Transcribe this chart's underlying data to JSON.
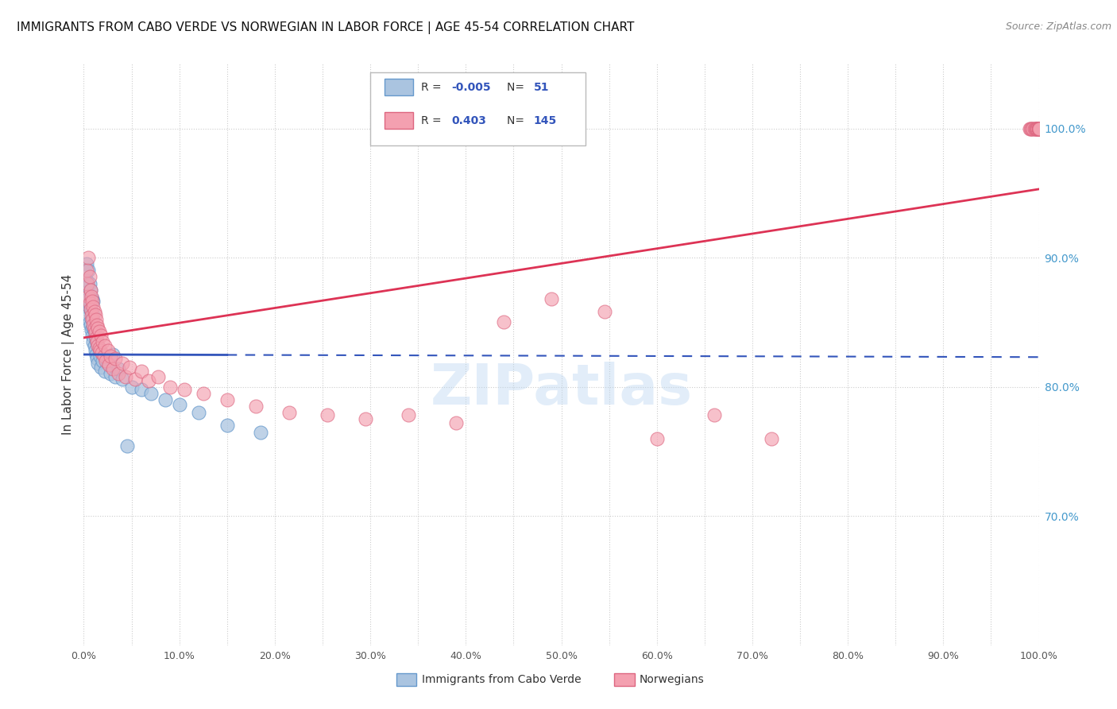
{
  "title": "IMMIGRANTS FROM CABO VERDE VS NORWEGIAN IN LABOR FORCE | AGE 45-54 CORRELATION CHART",
  "source": "Source: ZipAtlas.com",
  "ylabel": "In Labor Force | Age 45-54",
  "x_tick_labels": [
    "0.0%",
    "",
    "10.0%",
    "",
    "20.0%",
    "",
    "30.0%",
    "",
    "40.0%",
    "",
    "50.0%",
    "",
    "60.0%",
    "",
    "70.0%",
    "",
    "80.0%",
    "",
    "90.0%",
    "",
    "100.0%"
  ],
  "x_tick_values": [
    0.0,
    0.05,
    0.1,
    0.15,
    0.2,
    0.25,
    0.3,
    0.35,
    0.4,
    0.45,
    0.5,
    0.55,
    0.6,
    0.65,
    0.7,
    0.75,
    0.8,
    0.85,
    0.9,
    0.95,
    1.0
  ],
  "y_tick_labels_right": [
    "100.0%",
    "90.0%",
    "80.0%",
    "70.0%"
  ],
  "y_tick_values_right": [
    1.0,
    0.9,
    0.8,
    0.7
  ],
  "xlim": [
    0.0,
    1.0
  ],
  "ylim": [
    0.6,
    1.05
  ],
  "legend_R_blue": "-0.005",
  "legend_N_blue": "51",
  "legend_R_pink": "0.403",
  "legend_N_pink": "145",
  "legend_label_blue": "Immigrants from Cabo Verde",
  "legend_label_pink": "Norwegians",
  "blue_scatter_color": "#aac4e0",
  "pink_scatter_color": "#f4a0b0",
  "blue_edge_color": "#6699cc",
  "pink_edge_color": "#dd6680",
  "blue_line_color": "#3355bb",
  "pink_line_color": "#dd3355",
  "background_color": "#ffffff",
  "grid_color": "#cccccc",
  "title_color": "#111111",
  "source_color": "#888888",
  "watermark": "ZIPatlas",
  "blue_line_x0": 0.0,
  "blue_line_x_solid_end": 0.15,
  "blue_line_y0": 0.825,
  "blue_line_slope": -0.002,
  "pink_line_x0": 0.0,
  "pink_line_y0": 0.838,
  "pink_line_slope": 0.115,
  "blue_x": [
    0.003,
    0.003,
    0.003,
    0.004,
    0.004,
    0.005,
    0.005,
    0.005,
    0.006,
    0.006,
    0.006,
    0.007,
    0.007,
    0.007,
    0.008,
    0.008,
    0.009,
    0.009,
    0.009,
    0.01,
    0.01,
    0.01,
    0.01,
    0.011,
    0.011,
    0.012,
    0.012,
    0.013,
    0.013,
    0.014,
    0.015,
    0.016,
    0.017,
    0.018,
    0.02,
    0.022,
    0.025,
    0.028,
    0.03,
    0.033,
    0.036,
    0.04,
    0.045,
    0.05,
    0.06,
    0.07,
    0.085,
    0.1,
    0.12,
    0.15,
    0.185
  ],
  "blue_y": [
    0.87,
    0.882,
    0.895,
    0.862,
    0.878,
    0.856,
    0.868,
    0.89,
    0.85,
    0.864,
    0.88,
    0.848,
    0.86,
    0.875,
    0.844,
    0.858,
    0.84,
    0.852,
    0.868,
    0.835,
    0.845,
    0.856,
    0.866,
    0.832,
    0.844,
    0.828,
    0.84,
    0.825,
    0.836,
    0.822,
    0.818,
    0.83,
    0.824,
    0.815,
    0.82,
    0.812,
    0.818,
    0.81,
    0.825,
    0.808,
    0.814,
    0.806,
    0.754,
    0.8,
    0.798,
    0.795,
    0.79,
    0.786,
    0.78,
    0.77,
    0.765
  ],
  "pink_x": [
    0.003,
    0.004,
    0.005,
    0.005,
    0.006,
    0.006,
    0.007,
    0.007,
    0.008,
    0.008,
    0.009,
    0.009,
    0.01,
    0.01,
    0.011,
    0.011,
    0.012,
    0.012,
    0.013,
    0.013,
    0.014,
    0.014,
    0.015,
    0.015,
    0.016,
    0.016,
    0.017,
    0.018,
    0.019,
    0.02,
    0.021,
    0.022,
    0.023,
    0.025,
    0.026,
    0.028,
    0.03,
    0.033,
    0.036,
    0.04,
    0.044,
    0.048,
    0.054,
    0.06,
    0.068,
    0.078,
    0.09,
    0.105,
    0.125,
    0.15,
    0.18,
    0.215,
    0.255,
    0.295,
    0.34,
    0.39,
    0.44,
    0.49,
    0.545,
    0.6,
    0.66,
    0.72,
    0.99,
    0.991,
    0.992,
    0.993,
    0.994,
    0.995,
    0.996,
    0.997,
    0.997,
    0.998,
    0.998,
    0.999,
    0.999,
    1.0,
    1.0,
    1.0,
    1.0,
    1.0,
    1.0,
    1.0,
    1.0,
    1.0,
    1.0,
    1.0,
    1.0,
    1.0,
    1.0,
    1.0,
    1.0,
    1.0,
    1.0,
    1.0,
    1.0,
    1.0,
    1.0,
    1.0,
    1.0,
    1.0,
    1.0,
    1.0,
    1.0,
    1.0,
    1.0,
    1.0,
    1.0,
    1.0,
    1.0,
    1.0,
    1.0,
    1.0,
    1.0,
    1.0,
    1.0,
    1.0,
    1.0,
    1.0,
    1.0,
    1.0,
    1.0,
    1.0,
    1.0,
    1.0,
    1.0,
    1.0,
    1.0,
    1.0,
    1.0,
    1.0,
    1.0,
    1.0,
    1.0,
    1.0,
    1.0,
    1.0,
    1.0,
    1.0,
    1.0,
    1.0,
    1.0,
    1.0
  ],
  "pink_y": [
    0.89,
    0.88,
    0.87,
    0.9,
    0.865,
    0.885,
    0.86,
    0.875,
    0.855,
    0.87,
    0.852,
    0.866,
    0.848,
    0.862,
    0.845,
    0.858,
    0.842,
    0.856,
    0.838,
    0.852,
    0.835,
    0.848,
    0.832,
    0.845,
    0.83,
    0.843,
    0.828,
    0.84,
    0.826,
    0.835,
    0.824,
    0.832,
    0.82,
    0.828,
    0.817,
    0.824,
    0.814,
    0.822,
    0.81,
    0.818,
    0.808,
    0.815,
    0.806,
    0.812,
    0.805,
    0.808,
    0.8,
    0.798,
    0.795,
    0.79,
    0.785,
    0.78,
    0.778,
    0.775,
    0.778,
    0.772,
    0.85,
    0.868,
    0.858,
    0.76,
    0.778,
    0.76,
    1.0,
    1.0,
    1.0,
    1.0,
    1.0,
    1.0,
    1.0,
    1.0,
    1.0,
    1.0,
    1.0,
    1.0,
    1.0,
    1.0,
    1.0,
    1.0,
    1.0,
    1.0,
    1.0,
    1.0,
    1.0,
    1.0,
    1.0,
    1.0,
    1.0,
    1.0,
    1.0,
    1.0,
    1.0,
    1.0,
    1.0,
    1.0,
    1.0,
    1.0,
    1.0,
    1.0,
    1.0,
    1.0,
    1.0,
    1.0,
    1.0,
    1.0,
    1.0,
    1.0,
    1.0,
    1.0,
    1.0,
    1.0,
    1.0,
    1.0,
    1.0,
    1.0,
    1.0,
    1.0,
    1.0,
    1.0,
    1.0,
    1.0,
    1.0,
    1.0,
    1.0,
    1.0,
    1.0,
    1.0,
    1.0,
    1.0,
    1.0,
    1.0,
    1.0,
    1.0,
    1.0,
    1.0,
    1.0,
    1.0,
    1.0,
    1.0,
    1.0,
    1.0,
    1.0,
    1.0
  ]
}
